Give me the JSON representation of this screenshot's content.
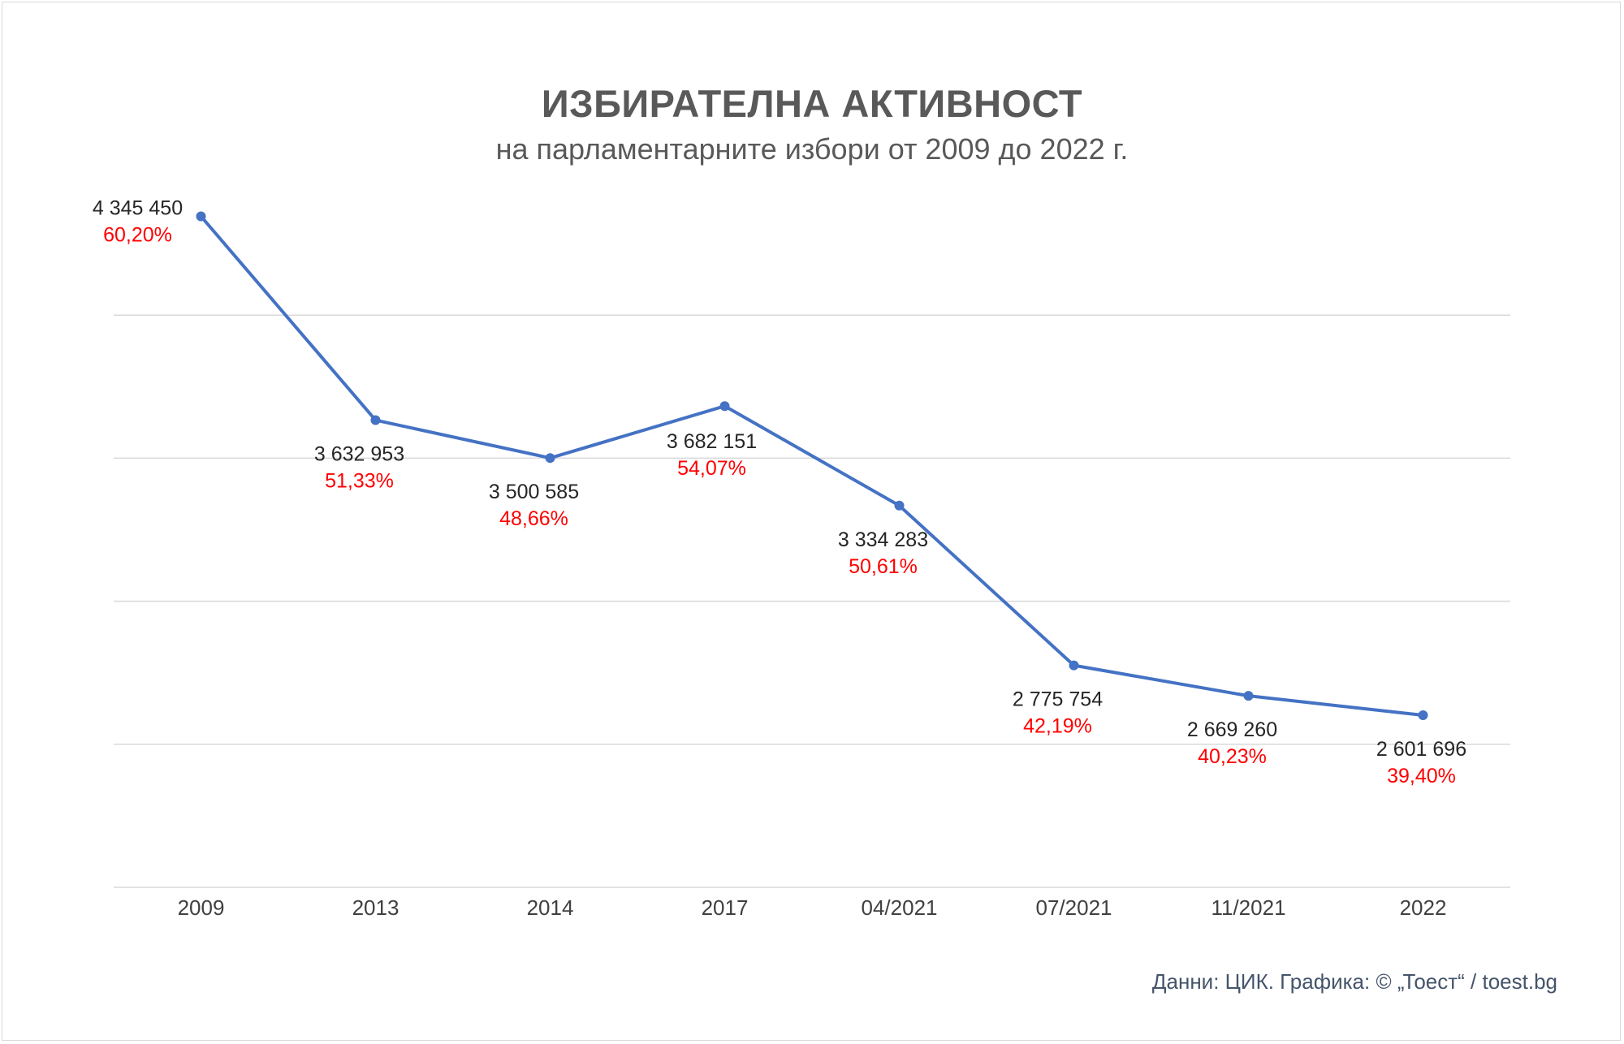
{
  "title": "ИЗБИРАТЕЛНА АКТИВНОСТ",
  "subtitle": "на парламентарните избори от 2009 до 2022 г.",
  "source": "Данни: ЦИК. Графика: © „Тоест“ / toest.bg",
  "colors": {
    "line": "#4472c4",
    "percent": "#ff0000",
    "grid": "#d9d9d9"
  },
  "chart_data": {
    "type": "line",
    "title": "ИЗБИРАТЕЛНА АКТИВНОСТ",
    "subtitle": "на парламентарните избори от 2009 до 2022 г.",
    "categories": [
      "2009",
      "2013",
      "2014",
      "2017",
      "04/2021",
      "07/2021",
      "11/2021",
      "2022"
    ],
    "series": [
      {
        "values": [
          4345450,
          3632953,
          3500585,
          3682151,
          3334283,
          2775754,
          2669260,
          2601696
        ]
      }
    ],
    "value_labels": [
      "4 345 450",
      "3 632 953",
      "3 500 585",
      "3 682 151",
      "3 334 283",
      "2 775 754",
      "2 669 260",
      "2 601 696"
    ],
    "percent_labels": [
      "60,20%",
      "51,33%",
      "48,66%",
      "54,07%",
      "50,61%",
      "42,19%",
      "40,23%",
      "39,40%"
    ],
    "ylim": [
      2000000,
      4500000
    ],
    "grid": true,
    "y_tick_labels_shown": false,
    "xlabel": "",
    "ylabel": ""
  }
}
